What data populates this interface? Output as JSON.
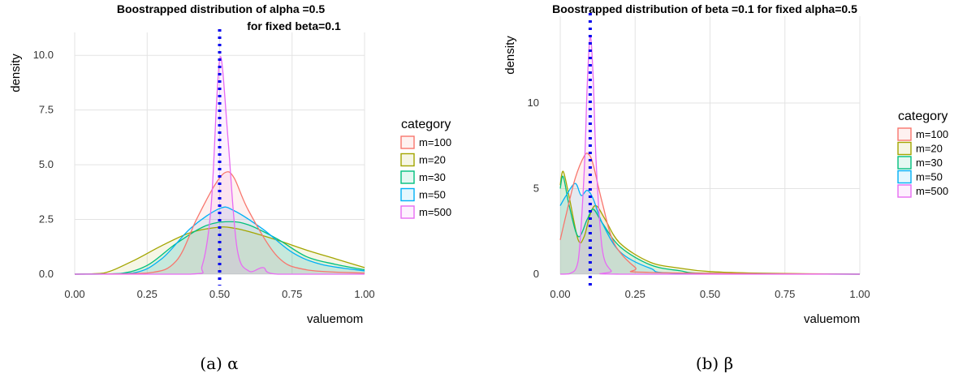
{
  "colors": {
    "m=100": "#F8766D",
    "m=20": "#A3A500",
    "m=30": "#00BF7D",
    "m=50": "#00B0F6",
    "m=500": "#E76BF3",
    "reference": "#0000ee"
  },
  "chart_data": [
    {
      "type": "area",
      "title": "Boostrapped distribution of alpha =0.5",
      "subtitle": "for fixed beta=0.1",
      "xlabel": "valuemom",
      "ylabel": "density",
      "xlim": [
        0,
        1
      ],
      "ylim": [
        0,
        10.6
      ],
      "x_ticks": [
        0,
        0.25,
        0.5,
        0.75,
        1.0
      ],
      "x_tick_labels": [
        "0.00",
        "0.25",
        "0.50",
        "0.75",
        "1.00"
      ],
      "y_ticks": [
        0,
        2.5,
        5,
        7.5,
        10
      ],
      "y_tick_labels": [
        "0.0",
        "2.5",
        "5.0",
        "7.5",
        "10.0"
      ],
      "grid": true,
      "reference_line": {
        "x": 0.5,
        "style": "dotted"
      },
      "legend_title": "category",
      "legend_placement": "right",
      "caption": "(a) α",
      "series": [
        {
          "name": "m=20",
          "x": [
            0,
            0.1,
            0.2,
            0.3,
            0.4,
            0.5,
            0.55,
            0.6,
            0.7,
            0.8,
            0.9,
            1.0
          ],
          "y": [
            0,
            0.05,
            0.6,
            1.3,
            1.9,
            2.15,
            2.1,
            1.95,
            1.55,
            1.1,
            0.7,
            0.3
          ]
        },
        {
          "name": "m=30",
          "x": [
            0,
            0.15,
            0.25,
            0.35,
            0.45,
            0.53,
            0.6,
            0.7,
            0.8,
            0.9,
            1.0
          ],
          "y": [
            0,
            0.02,
            0.4,
            1.4,
            2.2,
            2.4,
            2.25,
            1.6,
            0.8,
            0.45,
            0.2
          ]
        },
        {
          "name": "m=50",
          "x": [
            0,
            0.2,
            0.3,
            0.4,
            0.5,
            0.55,
            0.65,
            0.75,
            0.85,
            1.0
          ],
          "y": [
            0,
            0.05,
            0.7,
            2.1,
            3.0,
            2.9,
            2.05,
            1.0,
            0.45,
            0.15
          ]
        },
        {
          "name": "m=100",
          "x": [
            0,
            0.25,
            0.35,
            0.42,
            0.48,
            0.52,
            0.55,
            0.6,
            0.7,
            0.8,
            1.0
          ],
          "y": [
            0,
            0.05,
            0.6,
            2.5,
            4.0,
            4.65,
            4.4,
            2.9,
            0.8,
            0.2,
            0.05
          ]
        },
        {
          "name": "m=500",
          "x": [
            0,
            0.4,
            0.44,
            0.47,
            0.49,
            0.5,
            0.51,
            0.53,
            0.56,
            0.6,
            0.65,
            0.7,
            1.0
          ],
          "y": [
            0,
            0.0,
            0.4,
            3.0,
            8.0,
            9.8,
            9.4,
            6.0,
            1.2,
            0.15,
            0.3,
            0.0,
            0.0
          ]
        }
      ]
    },
    {
      "type": "area",
      "title": "Boostrapped distribution of beta =0.1 for fixed alpha=0.5",
      "xlabel": "valuemom",
      "ylabel": "density",
      "xlim": [
        0,
        1
      ],
      "ylim": [
        0,
        14.5
      ],
      "x_ticks": [
        0,
        0.25,
        0.5,
        0.75,
        1.0
      ],
      "x_tick_labels": [
        "0.00",
        "0.25",
        "0.50",
        "0.75",
        "1.00"
      ],
      "y_ticks": [
        0,
        5,
        10
      ],
      "y_tick_labels": [
        "0",
        "5",
        "10"
      ],
      "grid": true,
      "reference_line": {
        "x": 0.1,
        "style": "dotted"
      },
      "legend_title": "category",
      "legend_placement": "right",
      "caption": "(b) β",
      "series": [
        {
          "name": "m=20",
          "x": [
            0,
            0.01,
            0.03,
            0.06,
            0.08,
            0.1,
            0.12,
            0.15,
            0.2,
            0.3,
            0.4,
            0.5,
            0.7,
            1.0
          ],
          "y": [
            5.2,
            6.0,
            4.5,
            2.0,
            2.2,
            3.5,
            4.0,
            3.2,
            1.8,
            0.7,
            0.35,
            0.15,
            0.05,
            0.0
          ]
        },
        {
          "name": "m=30",
          "x": [
            0,
            0.01,
            0.03,
            0.06,
            0.09,
            0.11,
            0.14,
            0.2,
            0.3,
            0.4,
            0.5,
            1.0
          ],
          "y": [
            5.0,
            5.7,
            4.0,
            2.2,
            3.2,
            3.8,
            3.0,
            1.6,
            0.55,
            0.2,
            0.05,
            0.0
          ]
        },
        {
          "name": "m=50",
          "x": [
            0,
            0.02,
            0.05,
            0.07,
            0.09,
            0.11,
            0.14,
            0.2,
            0.3,
            0.4,
            1.0
          ],
          "y": [
            4.0,
            4.6,
            5.3,
            4.6,
            4.9,
            4.4,
            3.0,
            1.3,
            0.35,
            0.05,
            0.0
          ]
        },
        {
          "name": "m=100",
          "x": [
            0,
            0.02,
            0.05,
            0.08,
            0.095,
            0.11,
            0.14,
            0.18,
            0.25,
            0.3,
            1.0
          ],
          "y": [
            2.0,
            3.5,
            5.6,
            6.9,
            7.0,
            6.4,
            4.2,
            1.8,
            0.4,
            0.1,
            0.0
          ]
        },
        {
          "name": "m=500",
          "x": [
            0,
            0.03,
            0.06,
            0.08,
            0.09,
            0.1,
            0.11,
            0.12,
            0.14,
            0.17,
            0.2,
            1.0
          ],
          "y": [
            0,
            0.02,
            0.8,
            6.0,
            11.0,
            13.9,
            11.5,
            6.5,
            1.5,
            0.2,
            0.0,
            0.0
          ]
        }
      ]
    }
  ]
}
